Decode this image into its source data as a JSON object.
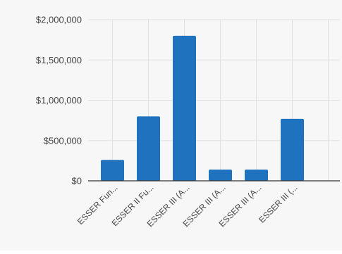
{
  "chart_data": {
    "type": "bar",
    "categories": [
      "ESSER Fun...",
      "ESSER II Fu...",
      "ESSER III (A...",
      "ESSER III (A...",
      "ESSER III (A...",
      "ESSER III (..."
    ],
    "values": [
      260000,
      800000,
      1800000,
      140000,
      140000,
      770000
    ],
    "ylim": [
      0,
      2000000
    ],
    "y_ticks": [
      0,
      500000,
      1000000,
      1500000,
      2000000
    ],
    "y_tick_labels": [
      "$0",
      "$500,000",
      "$1,000,000",
      "$1,500,000",
      "$2,000,000"
    ],
    "grid": true,
    "title": "",
    "xlabel": "",
    "ylabel": ""
  },
  "colors": {
    "bar": "#1f73be",
    "grid": "#e2e2e2",
    "axis": "#333333",
    "tick_text": "#444444",
    "background": "#f7f7f7"
  }
}
